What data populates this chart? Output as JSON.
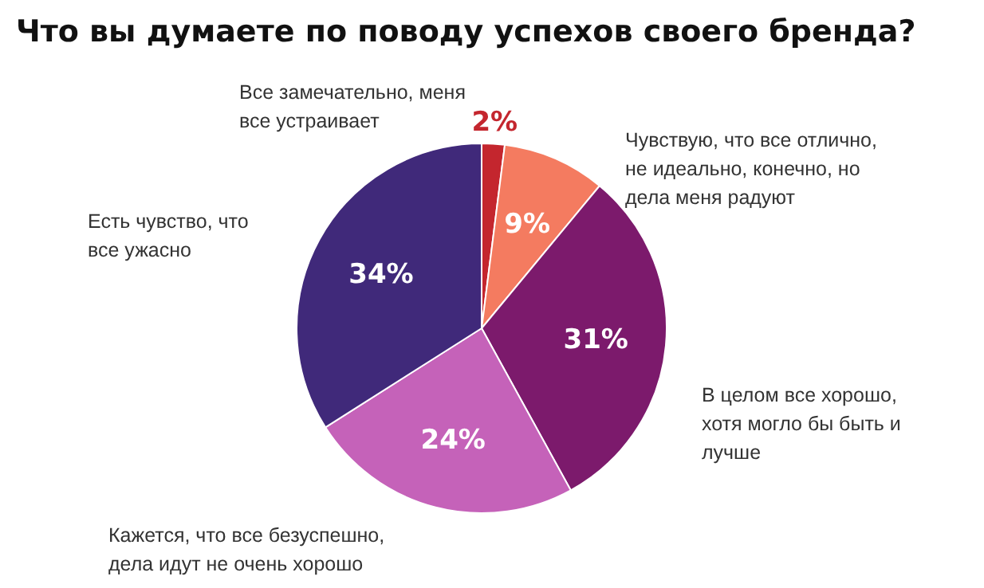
{
  "chart_data": {
    "type": "pie",
    "title": "Что вы думаете по поводу успехов своего бренда?",
    "categories": [
      "Все замечательно, меня все устраивает",
      "Чувствую, что все отлично, не идеально, конечно, но дела меня радуют",
      "В целом все хорошо, хотя могло бы быть и лучше",
      "Кажется, что все безуспешно, дела идут не очень хорошо",
      "Есть чувство, что все ужасно"
    ],
    "values": [
      2,
      9,
      31,
      24,
      34
    ],
    "value_labels": [
      "2%",
      "9%",
      "31%",
      "24%",
      "34%"
    ],
    "colors": [
      "#c4262e",
      "#f47b60",
      "#7c1a6c",
      "#c562b9",
      "#40297a"
    ]
  }
}
